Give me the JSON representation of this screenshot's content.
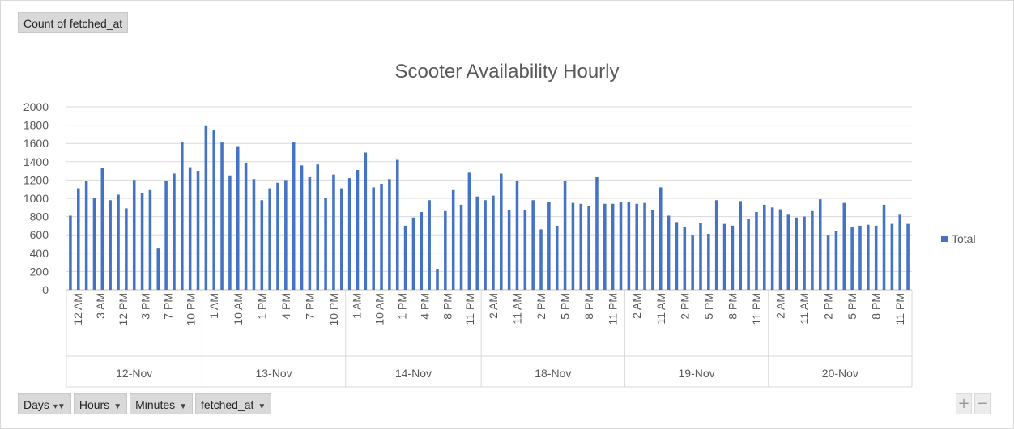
{
  "pivot": {
    "value_field": "Count of fetched_at",
    "axis_fields": [
      {
        "label": "Days",
        "icon": "filter-dropdown-icon"
      },
      {
        "label": "Hours",
        "icon": "dropdown-arrow-icon"
      },
      {
        "label": "Minutes",
        "icon": "dropdown-arrow-icon"
      },
      {
        "label": "fetched_at",
        "icon": "dropdown-arrow-icon"
      }
    ],
    "zoom_in_label": "+",
    "zoom_out_label": "−"
  },
  "chart_data": {
    "type": "bar",
    "title": "Scooter Availability Hourly",
    "ylim": [
      0,
      2000
    ],
    "yticks": [
      0,
      200,
      400,
      600,
      800,
      1000,
      1200,
      1400,
      1600,
      1800,
      2000
    ],
    "bar_color": "#4472c4",
    "series": [
      {
        "name": "Total",
        "groups": [
          {
            "day": "12-Nov",
            "tick_labels": [
              "12 AM",
              "3 AM",
              "12 PM",
              "3 PM",
              "7 PM",
              "10 PM"
            ],
            "values": [
              810,
              1110,
              1190,
              1000,
              1330,
              980,
              1040,
              890,
              1200,
              1060,
              1090,
              450,
              1190,
              1270,
              1610,
              1340,
              1300
            ]
          },
          {
            "day": "13-Nov",
            "tick_labels": [
              "1 AM",
              "10 AM",
              "1 PM",
              "4 PM",
              "7 PM",
              "10 PM"
            ],
            "values": [
              1790,
              1750,
              1610,
              1250,
              1570,
              1390,
              1210,
              980,
              1110,
              1170,
              1200,
              1610,
              1360,
              1230,
              1370,
              1000,
              1260,
              1110
            ]
          },
          {
            "day": "14-Nov",
            "tick_labels": [
              "1 AM",
              "10 AM",
              "1 PM",
              "4 PM",
              "8 PM",
              "11 PM"
            ],
            "values": [
              1220,
              1310,
              1500,
              1120,
              1160,
              1210,
              1420,
              700,
              790,
              850,
              980,
              230,
              860,
              1090,
              930,
              1280,
              1020
            ]
          },
          {
            "day": "18-Nov",
            "tick_labels": [
              "2 AM",
              "11 AM",
              "2 PM",
              "5 PM",
              "8 PM",
              "11 PM"
            ],
            "values": [
              980,
              1030,
              1270,
              870,
              1190,
              870,
              980,
              660,
              960,
              700,
              1190,
              950,
              940,
              920,
              1230,
              940,
              940,
              960
            ]
          },
          {
            "day": "19-Nov",
            "tick_labels": [
              "2 AM",
              "11 AM",
              "2 PM",
              "5 PM",
              "8 PM",
              "11 PM"
            ],
            "values": [
              960,
              940,
              950,
              870,
              1120,
              810,
              740,
              690,
              600,
              730,
              610,
              980,
              720,
              700,
              970,
              770,
              850,
              930
            ]
          },
          {
            "day": "20-Nov",
            "tick_labels": [
              "2 AM",
              "11 AM",
              "2 PM",
              "5 PM",
              "8 PM",
              "11 PM"
            ],
            "values": [
              900,
              880,
              820,
              790,
              800,
              860,
              990,
              600,
              640,
              950,
              690,
              700,
              710,
              700,
              930,
              720,
              820,
              720
            ]
          }
        ]
      }
    ],
    "legend": {
      "entries": [
        "Total"
      ],
      "position": "right"
    }
  }
}
